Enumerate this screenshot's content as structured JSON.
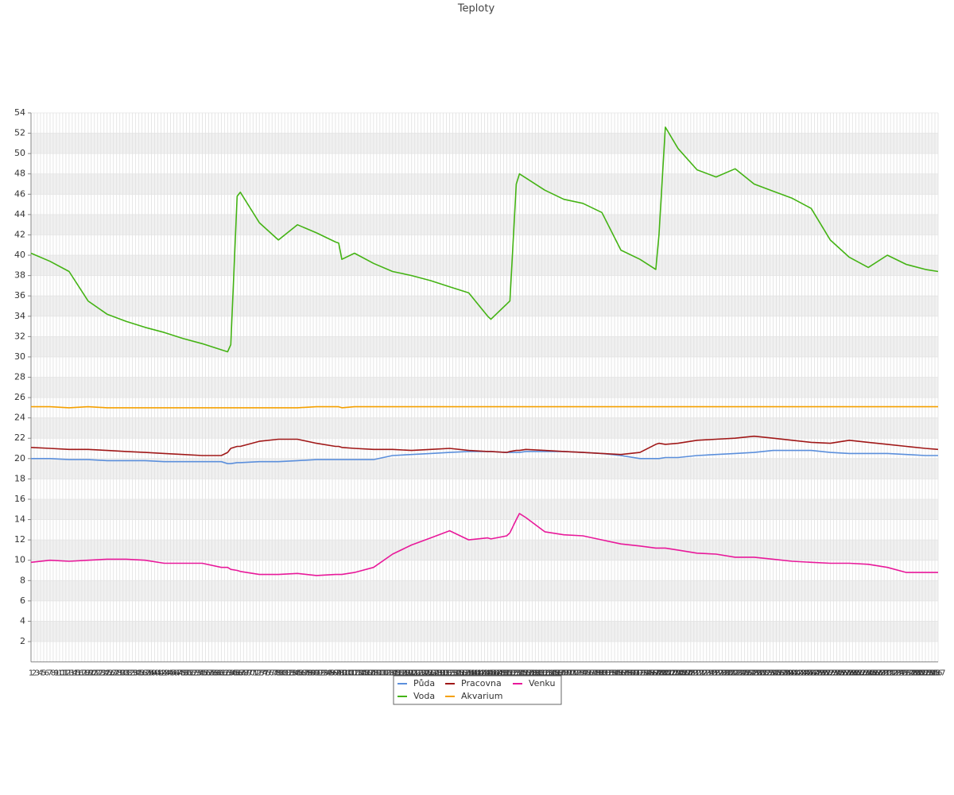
{
  "chart_data": {
    "type": "line",
    "title": "Teploty",
    "x": [
      1,
      7,
      13,
      19,
      25,
      31,
      37,
      43,
      49,
      55,
      61,
      63,
      64,
      66,
      67,
      73,
      79,
      85,
      91,
      97,
      98,
      99,
      103,
      109,
      115,
      121,
      127,
      133,
      139,
      145,
      146,
      151,
      152,
      154,
      155,
      157,
      163,
      169,
      175,
      181,
      187,
      193,
      198,
      199,
      201,
      205,
      211,
      217,
      223,
      229,
      235,
      241,
      247,
      253,
      259,
      265,
      271,
      277,
      283,
      287
    ],
    "xlim": [
      1,
      287
    ],
    "xticks": [
      1,
      2,
      3,
      4,
      5,
      6,
      7,
      8,
      9,
      10,
      11,
      12,
      13,
      14,
      15,
      16,
      17,
      18,
      19,
      20,
      21,
      22,
      23,
      24,
      25,
      26,
      27,
      28,
      29,
      30,
      31,
      32,
      33,
      34,
      35,
      36,
      37,
      38,
      39,
      40,
      41,
      42,
      43,
      44,
      45,
      46,
      47,
      48,
      49,
      50,
      51,
      52,
      53,
      54,
      55,
      56,
      57,
      58,
      59,
      60,
      61,
      62,
      63,
      64,
      65,
      66,
      67,
      68,
      69,
      70,
      71,
      72,
      73,
      74,
      75,
      76,
      77,
      78,
      79,
      80,
      81,
      82,
      83,
      84,
      85,
      86,
      87,
      88,
      89,
      90,
      91,
      92,
      93,
      94,
      95,
      96,
      97,
      98,
      99,
      100,
      101,
      102,
      103,
      104,
      105,
      106,
      107,
      108,
      109,
      110,
      111,
      112,
      113,
      114,
      115,
      116,
      117,
      118,
      119,
      120,
      121,
      122,
      123,
      124,
      125,
      126,
      127,
      128,
      129,
      130,
      131,
      132,
      133,
      134,
      135,
      136,
      137,
      138,
      139,
      140,
      141,
      142,
      143,
      144,
      145,
      146,
      147,
      148,
      149,
      150,
      151,
      152,
      153,
      154,
      155,
      156,
      157,
      158,
      159,
      160,
      161,
      162,
      163,
      164,
      165,
      166,
      167,
      168,
      169,
      170,
      171,
      172,
      173,
      174,
      175,
      176,
      177,
      178,
      179,
      180,
      181,
      182,
      183,
      184,
      185,
      186,
      187,
      188,
      189,
      190,
      191,
      192,
      193,
      194,
      195,
      196,
      197,
      198,
      199,
      200,
      201,
      202,
      203,
      204,
      205,
      206,
      207,
      208,
      209,
      210,
      211,
      212,
      213,
      214,
      215,
      216,
      217,
      218,
      219,
      220,
      221,
      222,
      223,
      224,
      225,
      226,
      227,
      228,
      229,
      230,
      231,
      232,
      233,
      234,
      235,
      236,
      237,
      238,
      239,
      240,
      241,
      242,
      243,
      244,
      245,
      246,
      247,
      248,
      249,
      250,
      251,
      252,
      253,
      254,
      255,
      256,
      257,
      258,
      259,
      260,
      261,
      262,
      263,
      264,
      265,
      266,
      267,
      268,
      269,
      270,
      271,
      272,
      273,
      274,
      275,
      276,
      277,
      278,
      279,
      280,
      281,
      282,
      283,
      284,
      285,
      286,
      287
    ],
    "ylim": [
      0,
      54
    ],
    "yticks": [
      2,
      4,
      6,
      8,
      10,
      12,
      14,
      16,
      18,
      20,
      22,
      24,
      26,
      28,
      30,
      32,
      34,
      36,
      38,
      40,
      42,
      44,
      46,
      48,
      50,
      52,
      54
    ],
    "grid": true,
    "legend": "bottom",
    "series": [
      {
        "name": "Půda",
        "color": "#5b8fdc",
        "values": [
          20.0,
          20.0,
          19.9,
          19.9,
          19.8,
          19.8,
          19.8,
          19.7,
          19.7,
          19.7,
          19.7,
          19.5,
          19.5,
          19.6,
          19.6,
          19.7,
          19.7,
          19.8,
          19.9,
          19.9,
          19.9,
          19.9,
          19.9,
          19.9,
          20.3,
          20.4,
          20.5,
          20.6,
          20.7,
          20.7,
          20.7,
          20.6,
          20.6,
          20.6,
          20.6,
          20.7,
          20.7,
          20.7,
          20.6,
          20.5,
          20.3,
          20.0,
          20.0,
          20.0,
          20.1,
          20.1,
          20.3,
          20.4,
          20.5,
          20.6,
          20.8,
          20.8,
          20.8,
          20.6,
          20.5,
          20.5,
          20.5,
          20.4,
          20.3,
          20.3
        ]
      },
      {
        "name": "Voda",
        "color": "#44b314",
        "values": [
          40.2,
          39.4,
          38.4,
          35.5,
          34.2,
          33.5,
          32.9,
          32.4,
          31.8,
          31.3,
          30.7,
          30.5,
          31.2,
          45.8,
          46.2,
          43.2,
          41.5,
          43.0,
          42.2,
          41.3,
          41.2,
          39.6,
          40.2,
          39.2,
          38.4,
          38.0,
          37.5,
          36.9,
          36.3,
          34.0,
          33.7,
          35.2,
          35.5,
          47.0,
          48.0,
          47.6,
          46.4,
          45.5,
          45.1,
          44.2,
          40.5,
          39.6,
          38.6,
          42.0,
          52.6,
          50.5,
          48.4,
          47.7,
          48.5,
          47.0,
          46.3,
          45.6,
          44.6,
          41.5,
          39.8,
          38.8,
          40.0,
          39.1,
          38.6,
          38.4
        ]
      },
      {
        "name": "Pracovna",
        "color": "#a01818",
        "values": [
          21.1,
          21.0,
          20.9,
          20.9,
          20.8,
          20.7,
          20.6,
          20.5,
          20.4,
          20.3,
          20.3,
          20.6,
          21.0,
          21.2,
          21.2,
          21.7,
          21.9,
          21.9,
          21.5,
          21.2,
          21.2,
          21.1,
          21.0,
          20.9,
          20.9,
          20.8,
          20.9,
          21.0,
          20.8,
          20.7,
          20.7,
          20.6,
          20.7,
          20.8,
          20.8,
          20.9,
          20.8,
          20.7,
          20.6,
          20.5,
          20.4,
          20.6,
          21.4,
          21.5,
          21.4,
          21.5,
          21.8,
          21.9,
          22.0,
          22.2,
          22.0,
          21.8,
          21.6,
          21.5,
          21.8,
          21.6,
          21.4,
          21.2,
          21.0,
          20.9
        ]
      },
      {
        "name": "Akvarium",
        "color": "#f5a000",
        "values": [
          25.1,
          25.1,
          25.0,
          25.1,
          25.0,
          25.0,
          25.0,
          25.0,
          25.0,
          25.0,
          25.0,
          25.0,
          25.0,
          25.0,
          25.0,
          25.0,
          25.0,
          25.0,
          25.1,
          25.1,
          25.1,
          25.0,
          25.1,
          25.1,
          25.1,
          25.1,
          25.1,
          25.1,
          25.1,
          25.1,
          25.1,
          25.1,
          25.1,
          25.1,
          25.1,
          25.1,
          25.1,
          25.1,
          25.1,
          25.1,
          25.1,
          25.1,
          25.1,
          25.1,
          25.1,
          25.1,
          25.1,
          25.1,
          25.1,
          25.1,
          25.1,
          25.1,
          25.1,
          25.1,
          25.1,
          25.1,
          25.1,
          25.1,
          25.1,
          25.1
        ]
      },
      {
        "name": "Venku",
        "color": "#e8199a",
        "values": [
          9.8,
          10.0,
          9.9,
          10.0,
          10.1,
          10.1,
          10.0,
          9.7,
          9.7,
          9.7,
          9.3,
          9.3,
          9.1,
          9.0,
          8.9,
          8.6,
          8.6,
          8.7,
          8.5,
          8.6,
          8.6,
          8.6,
          8.8,
          9.3,
          10.6,
          11.5,
          12.2,
          12.9,
          12.0,
          12.2,
          12.1,
          12.4,
          12.7,
          14.0,
          14.6,
          14.2,
          12.8,
          12.5,
          12.4,
          12.0,
          11.6,
          11.4,
          11.2,
          11.2,
          11.2,
          11.0,
          10.7,
          10.6,
          10.3,
          10.3,
          10.1,
          9.9,
          9.8,
          9.7,
          9.7,
          9.6,
          9.3,
          8.8,
          8.8,
          8.8
        ]
      }
    ]
  }
}
